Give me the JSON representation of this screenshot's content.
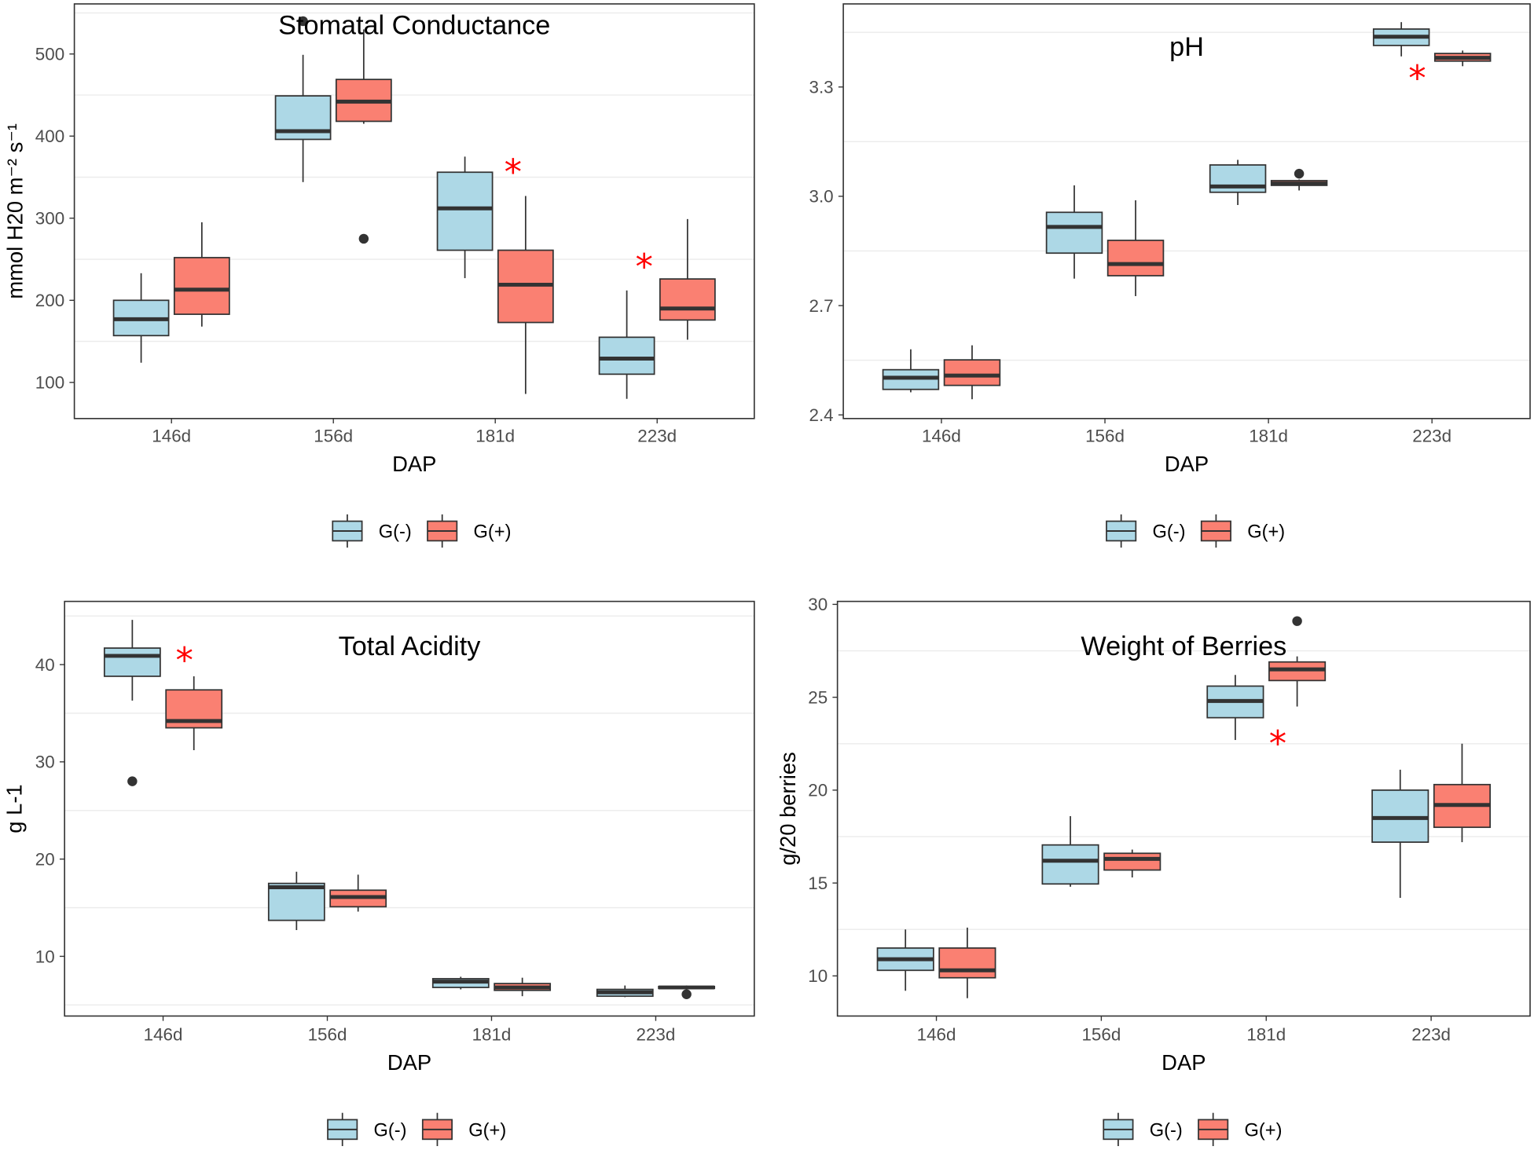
{
  "chart_data": [
    {
      "type": "box",
      "title": "Stomatal Conductance",
      "xlabel": "DAP",
      "ylabel": "mmol H20 m⁻² s⁻¹",
      "categories": [
        "146d",
        "156d",
        "181d",
        "223d"
      ],
      "ylim": [
        56,
        561
      ],
      "yticks": [
        100,
        200,
        300,
        400,
        500
      ],
      "ytick_labels": [
        "100",
        "200",
        "300",
        "400",
        "500"
      ],
      "legend": "bottom",
      "series": [
        {
          "name": "G(-)",
          "color": "#ADD8E6",
          "boxes": [
            {
              "low": 124,
              "q1": 157,
              "median": 177,
              "q3": 200,
              "high": 233,
              "outliers": []
            },
            {
              "low": 344,
              "q1": 396,
              "median": 406,
              "q3": 449,
              "high": 499,
              "outliers": [
                540
              ]
            },
            {
              "low": 227,
              "q1": 261,
              "median": 312,
              "q3": 356,
              "high": 375,
              "outliers": []
            },
            {
              "low": 80,
              "q1": 110,
              "median": 129,
              "q3": 155,
              "high": 212,
              "outliers": []
            }
          ]
        },
        {
          "name": "G(+)",
          "color": "#FA8072",
          "boxes": [
            {
              "low": 168,
              "q1": 183,
              "median": 213,
              "q3": 252,
              "high": 295,
              "outliers": []
            },
            {
              "low": 415,
              "q1": 418,
              "median": 442,
              "q3": 469,
              "high": 530,
              "outliers": [
                275
              ]
            },
            {
              "low": 86,
              "q1": 173,
              "median": 219,
              "q3": 261,
              "high": 327,
              "outliers": []
            },
            {
              "low": 152,
              "q1": 176,
              "median": 190,
              "q3": 226,
              "high": 299,
              "outliers": []
            }
          ]
        }
      ],
      "annotations": [
        {
          "text": "*",
          "x": 3.11,
          "y": 365,
          "color": "#FF0000"
        },
        {
          "text": "*",
          "x": 3.92,
          "y": 250,
          "color": "#FF0000"
        }
      ]
    },
    {
      "type": "box",
      "title": "pH",
      "xlabel": "DAP",
      "ylabel": "",
      "categories": [
        "146d",
        "156d",
        "181d",
        "223d"
      ],
      "ylim": [
        2.39,
        3.528
      ],
      "yticks": [
        2.4,
        2.7,
        3.0,
        3.3
      ],
      "ytick_labels": [
        "2.4",
        "2.7",
        "3.0",
        "3.3"
      ],
      "legend": "bottom",
      "series": [
        {
          "name": "G(-)",
          "color": "#ADD8E6",
          "boxes": [
            {
              "low": 2.462,
              "q1": 2.47,
              "median": 2.502,
              "q3": 2.524,
              "high": 2.58,
              "outliers": []
            },
            {
              "low": 2.774,
              "q1": 2.844,
              "median": 2.916,
              "q3": 2.956,
              "high": 3.03,
              "outliers": []
            },
            {
              "low": 2.976,
              "q1": 3.011,
              "median": 3.027,
              "q3": 3.086,
              "high": 3.1,
              "outliers": []
            },
            {
              "low": 3.384,
              "q1": 3.414,
              "median": 3.438,
              "q3": 3.459,
              "high": 3.478,
              "outliers": []
            }
          ]
        },
        {
          "name": "G(+)",
          "color": "#FA8072",
          "boxes": [
            {
              "low": 2.443,
              "q1": 2.481,
              "median": 2.508,
              "q3": 2.551,
              "high": 2.591,
              "outliers": []
            },
            {
              "low": 2.726,
              "q1": 2.782,
              "median": 2.814,
              "q3": 2.879,
              "high": 2.989,
              "outliers": []
            },
            {
              "low": 3.016,
              "q1": 3.03,
              "median": 3.035,
              "q3": 3.043,
              "high": 3.046,
              "outliers": [
                3.062
              ]
            },
            {
              "low": 3.357,
              "q1": 3.371,
              "median": 3.38,
              "q3": 3.392,
              "high": 3.4,
              "outliers": []
            }
          ]
        }
      ],
      "annotations": [
        {
          "text": "*",
          "x": 3.91,
          "y": 3.345,
          "color": "#FF0000"
        }
      ]
    },
    {
      "type": "box",
      "title": "Total Acidity",
      "xlabel": "DAP",
      "ylabel": "g L-1",
      "categories": [
        "146d",
        "156d",
        "181d",
        "223d"
      ],
      "ylim": [
        3.86,
        46.5
      ],
      "yticks": [
        10,
        20,
        30,
        40
      ],
      "ytick_labels": [
        "10",
        "20",
        "30",
        "40"
      ],
      "legend": "bottom",
      "series": [
        {
          "name": "G(-)",
          "color": "#ADD8E6",
          "boxes": [
            {
              "low": 36.3,
              "q1": 38.8,
              "median": 40.9,
              "q3": 41.7,
              "high": 44.6,
              "outliers": [
                28.0
              ]
            },
            {
              "low": 12.7,
              "q1": 13.7,
              "median": 17.1,
              "q3": 17.5,
              "high": 18.7,
              "outliers": []
            },
            {
              "low": 6.6,
              "q1": 6.8,
              "median": 7.4,
              "q3": 7.7,
              "high": 7.9,
              "outliers": []
            },
            {
              "low": 5.8,
              "q1": 5.9,
              "median": 6.3,
              "q3": 6.6,
              "high": 7.0,
              "outliers": []
            }
          ]
        },
        {
          "name": "G(+)",
          "color": "#FA8072",
          "boxes": [
            {
              "low": 31.2,
              "q1": 33.5,
              "median": 34.2,
              "q3": 37.4,
              "high": 38.8,
              "outliers": []
            },
            {
              "low": 14.6,
              "q1": 15.1,
              "median": 16.1,
              "q3": 16.8,
              "high": 18.4,
              "outliers": []
            },
            {
              "low": 5.9,
              "q1": 6.5,
              "median": 6.8,
              "q3": 7.2,
              "high": 7.8,
              "outliers": []
            },
            {
              "low": 6.6,
              "q1": 6.7,
              "median": 6.8,
              "q3": 6.9,
              "high": 7.0,
              "outliers": [
                6.1
              ]
            }
          ]
        }
      ],
      "annotations": [
        {
          "text": "*",
          "x": 1.13,
          "y": 41.2,
          "color": "#FF0000"
        }
      ]
    },
    {
      "type": "box",
      "title": "Weight of Berries",
      "xlabel": "DAP",
      "ylabel": "g/20 berries",
      "categories": [
        "146d",
        "156d",
        "181d",
        "223d"
      ],
      "ylim": [
        7.84,
        30.16
      ],
      "yticks": [
        10,
        15,
        20,
        25,
        30
      ],
      "ytick_labels": [
        "10",
        "15",
        "20",
        "25",
        "30"
      ],
      "legend": "bottom",
      "series": [
        {
          "name": "G(-)",
          "color": "#ADD8E6",
          "boxes": [
            {
              "low": 9.2,
              "q1": 10.3,
              "median": 10.9,
              "q3": 11.5,
              "high": 12.5,
              "outliers": []
            },
            {
              "low": 14.8,
              "q1": 14.95,
              "median": 16.2,
              "q3": 17.05,
              "high": 18.6,
              "outliers": []
            },
            {
              "low": 22.7,
              "q1": 23.9,
              "median": 24.8,
              "q3": 25.6,
              "high": 26.2,
              "outliers": []
            },
            {
              "low": 14.2,
              "q1": 17.2,
              "median": 18.5,
              "q3": 20.0,
              "high": 21.1,
              "outliers": []
            }
          ]
        },
        {
          "name": "G(+)",
          "color": "#FA8072",
          "boxes": [
            {
              "low": 8.8,
              "q1": 9.9,
              "median": 10.3,
              "q3": 11.5,
              "high": 12.6,
              "outliers": []
            },
            {
              "low": 15.3,
              "q1": 15.7,
              "median": 16.3,
              "q3": 16.6,
              "high": 16.8,
              "outliers": []
            },
            {
              "low": 24.5,
              "q1": 25.9,
              "median": 26.5,
              "q3": 26.9,
              "high": 27.2,
              "outliers": [
                29.1
              ]
            },
            {
              "low": 17.2,
              "q1": 18.0,
              "median": 19.2,
              "q3": 20.3,
              "high": 22.5,
              "outliers": []
            }
          ]
        }
      ],
      "annotations": [
        {
          "text": "*",
          "x": 3.07,
          "y": 22.9,
          "color": "#FF0000"
        }
      ]
    }
  ]
}
